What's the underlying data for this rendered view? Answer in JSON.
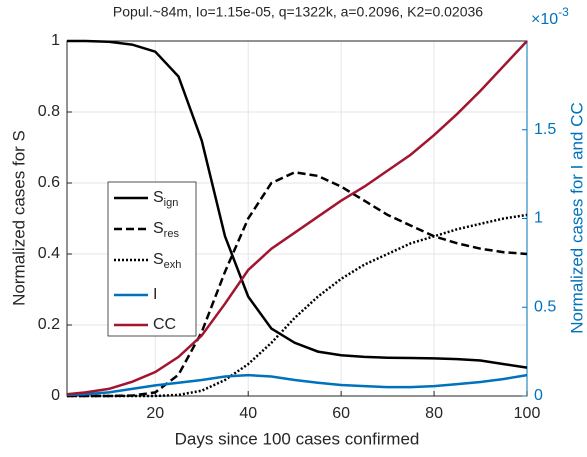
{
  "chart_data": {
    "type": "line",
    "title": "Popul.~84m, Io=1.15e-05, q=1322k, a=0.2096, K2=0.02036",
    "x_label": "Days since 100 cases confirmed",
    "y_label": "Normalized cases for S",
    "y2_label": "Normalized cases for I and CC",
    "y2_multiplier_base": "×10",
    "y2_multiplier_exponent": "-3",
    "x": [
      1,
      5,
      10,
      15,
      20,
      25,
      30,
      35,
      40,
      45,
      50,
      55,
      60,
      65,
      70,
      75,
      80,
      85,
      90,
      95,
      100
    ],
    "xlim": [
      1,
      100
    ],
    "xticks": [
      20,
      40,
      60,
      80,
      100
    ],
    "ylim": [
      0,
      1
    ],
    "yticks": [
      0,
      0.2,
      0.4,
      0.6,
      0.8,
      1
    ],
    "y2lim": [
      0,
      2
    ],
    "y2ticks": [
      0,
      0.5,
      1,
      1.5
    ],
    "y2_color": "#0072bd",
    "grid": true,
    "series": [
      {
        "name": "S_ign",
        "color": "#000000",
        "dash": "solid",
        "values": [
          1,
          1,
          0.998,
          0.99,
          0.97,
          0.9,
          0.72,
          0.45,
          0.28,
          0.19,
          0.15,
          0.125,
          0.115,
          0.11,
          0.108,
          0.107,
          0.106,
          0.104,
          0.1,
          0.09,
          0.08
        ]
      },
      {
        "name": "S_res",
        "color": "#000000",
        "dash": "dashed",
        "values": [
          0,
          0,
          0,
          0.001,
          0.01,
          0.06,
          0.18,
          0.35,
          0.5,
          0.6,
          0.63,
          0.62,
          0.59,
          0.55,
          0.51,
          0.48,
          0.45,
          0.43,
          0.415,
          0.405,
          0.4
        ]
      },
      {
        "name": "S_exh",
        "color": "#000000",
        "dash": "dotted",
        "values": [
          0,
          0,
          0,
          0,
          0,
          0.003,
          0.015,
          0.045,
          0.09,
          0.15,
          0.22,
          0.28,
          0.33,
          0.37,
          0.4,
          0.43,
          0.45,
          0.47,
          0.485,
          0.5,
          0.51
        ]
      },
      {
        "name": "I",
        "color": "#0072bd",
        "dash": "solid",
        "axis": "y2",
        "values": [
          0.006,
          0.01,
          0.02,
          0.04,
          0.06,
          0.075,
          0.09,
          0.11,
          0.118,
          0.11,
          0.09,
          0.075,
          0.062,
          0.056,
          0.05,
          0.05,
          0.056,
          0.067,
          0.079,
          0.096,
          0.118
        ]
      },
      {
        "name": "CC",
        "color": "#a2142f",
        "dash": "solid",
        "axis": "y2",
        "values": [
          0.01,
          0.02,
          0.04,
          0.08,
          0.135,
          0.22,
          0.34,
          0.52,
          0.71,
          0.83,
          0.92,
          1.01,
          1.1,
          1.18,
          1.27,
          1.36,
          1.47,
          1.59,
          1.72,
          1.86,
          2.0
        ]
      }
    ]
  }
}
